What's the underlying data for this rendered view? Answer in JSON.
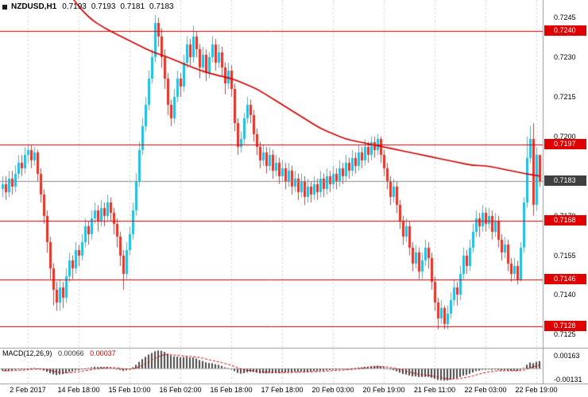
{
  "title": {
    "symbol": "NZDUSD,H1",
    "open": "0.7193",
    "high": "0.7193",
    "low": "0.7181",
    "close": "0.7183"
  },
  "macd_title": {
    "label": "MACD(12,26,9)",
    "value_main": "0.00066",
    "value_signal": "0.00037"
  },
  "colors": {
    "bull": "#1fc0e0",
    "bear": "#e5342a",
    "sr_line": "#e00000",
    "ma_line": "#d00000",
    "grid": "#d6d6d6",
    "divider": "#9a9a9a",
    "price_line": "#8a8a8a",
    "tag_sr_bg": "#e00000",
    "tag_current_bg": "#3f3f3f",
    "tag_text": "#ffffff",
    "macd_hist": "#4a4a4a",
    "macd_signal": "#d00000",
    "macd_zero": "#b4b4b4",
    "text": "#000000",
    "background": "#ffffff"
  },
  "chart_data": {
    "type": "candlestick",
    "symbol": "NZDUSD",
    "timeframe": "H1",
    "pip": 0.0001,
    "ylim": [
      0.712,
      0.72517
    ],
    "current_price": 0.7183,
    "current_bar": {
      "open": 0.7193,
      "high": 0.7193,
      "low": 0.7181,
      "close": 0.7183
    },
    "sr_levels": [
      0.724,
      0.7197,
      0.7168,
      0.7146,
      0.7128
    ],
    "price_axis": {
      "labels_plain": [
        "0.7245",
        "0.7230",
        "0.7215",
        "0.7200",
        "0.7170",
        "0.7155",
        "0.7140",
        "0.7125"
      ],
      "level_tags": [
        {
          "text": "0.7240",
          "type": "sr"
        },
        {
          "text": "0.7197",
          "type": "sr"
        },
        {
          "text": "0.7168",
          "type": "sr"
        },
        {
          "text": "0.7146",
          "type": "sr"
        },
        {
          "text": "0.7128",
          "type": "sr"
        },
        {
          "text": "0.7183",
          "type": "current"
        }
      ]
    },
    "x_axis": {
      "labels": [
        "2 Feb 2017",
        "14 Feb 18:00",
        "15 Feb 10:00",
        "16 Feb 02:00",
        "16 Feb 18:00",
        "17 Feb 18:00",
        "20 Feb 03:00",
        "20 Feb 19:00",
        "21 Feb 11:00",
        "22 Feb 03:00",
        "22 Feb 19:00"
      ],
      "tick_indices": [
        8,
        24,
        40,
        56,
        72,
        88,
        104,
        120,
        136,
        152,
        168
      ]
    },
    "candles_pips": [
      [
        7180,
        7185,
        7177,
        7182
      ],
      [
        7182,
        7185,
        7176,
        7179
      ],
      [
        7179,
        7187,
        7177,
        7184
      ],
      [
        7184,
        7187,
        7178,
        7181
      ],
      [
        7181,
        7189,
        7179,
        7186
      ],
      [
        7186,
        7193,
        7184,
        7190
      ],
      [
        7190,
        7193,
        7185,
        7188
      ],
      [
        7188,
        7196,
        7186,
        7193
      ],
      [
        7193,
        7197,
        7190,
        7195
      ],
      [
        7195,
        7197,
        7188,
        7191
      ],
      [
        7191,
        7196,
        7189,
        7194
      ],
      [
        7194,
        7195,
        7183,
        7186
      ],
      [
        7186,
        7188,
        7175,
        7178
      ],
      [
        7178,
        7180,
        7167,
        7170
      ],
      [
        7170,
        7172,
        7156,
        7160
      ],
      [
        7160,
        7162,
        7146,
        7150
      ],
      [
        7150,
        7152,
        7136,
        7142
      ],
      [
        7142,
        7145,
        7134,
        7137
      ],
      [
        7137,
        7146,
        7134,
        7143
      ],
      [
        7143,
        7145,
        7135,
        7139
      ],
      [
        7139,
        7150,
        7137,
        7147
      ],
      [
        7147,
        7156,
        7145,
        7153
      ],
      [
        7153,
        7155,
        7146,
        7150
      ],
      [
        7150,
        7160,
        7148,
        7157
      ],
      [
        7157,
        7159,
        7151,
        7155
      ],
      [
        7155,
        7163,
        7153,
        7160
      ],
      [
        7160,
        7169,
        7158,
        7166
      ],
      [
        7166,
        7168,
        7159,
        7163
      ],
      [
        7163,
        7172,
        7161,
        7169
      ],
      [
        7169,
        7175,
        7167,
        7172
      ],
      [
        7172,
        7174,
        7164,
        7168
      ],
      [
        7168,
        7176,
        7166,
        7173
      ],
      [
        7173,
        7175,
        7166,
        7170
      ],
      [
        7170,
        7178,
        7168,
        7175
      ],
      [
        7175,
        7177,
        7168,
        7171
      ],
      [
        7171,
        7173,
        7163,
        7167
      ],
      [
        7167,
        7169,
        7158,
        7162
      ],
      [
        7162,
        7164,
        7151,
        7155
      ],
      [
        7155,
        7157,
        7142,
        7148
      ],
      [
        7148,
        7160,
        7146,
        7157
      ],
      [
        7157,
        7166,
        7155,
        7163
      ],
      [
        7163,
        7175,
        7161,
        7172
      ],
      [
        7172,
        7186,
        7170,
        7183
      ],
      [
        7183,
        7198,
        7181,
        7195
      ],
      [
        7195,
        7207,
        7193,
        7204
      ],
      [
        7204,
        7215,
        7202,
        7212
      ],
      [
        7212,
        7225,
        7210,
        7222
      ],
      [
        7222,
        7233,
        7220,
        7230
      ],
      [
        7230,
        7246,
        7228,
        7243
      ],
      [
        7243,
        7245,
        7234,
        7238
      ],
      [
        7238,
        7241,
        7226,
        7230
      ],
      [
        7230,
        7233,
        7218,
        7222
      ],
      [
        7222,
        7224,
        7208,
        7212
      ],
      [
        7212,
        7214,
        7204,
        7207
      ],
      [
        7207,
        7218,
        7205,
        7215
      ],
      [
        7215,
        7225,
        7213,
        7222
      ],
      [
        7222,
        7224,
        7215,
        7219
      ],
      [
        7219,
        7231,
        7217,
        7228
      ],
      [
        7228,
        7238,
        7226,
        7235
      ],
      [
        7235,
        7237,
        7227,
        7230
      ],
      [
        7230,
        7242,
        7228,
        7238
      ],
      [
        7238,
        7240,
        7230,
        7233
      ],
      [
        7233,
        7235,
        7222,
        7226
      ],
      [
        7226,
        7234,
        7224,
        7231
      ],
      [
        7231,
        7233,
        7221,
        7224
      ],
      [
        7224,
        7232,
        7222,
        7230
      ],
      [
        7230,
        7238,
        7228,
        7235
      ],
      [
        7235,
        7237,
        7225,
        7228
      ],
      [
        7228,
        7235,
        7226,
        7232
      ],
      [
        7232,
        7234,
        7223,
        7226
      ],
      [
        7226,
        7228,
        7216,
        7220
      ],
      [
        7220,
        7228,
        7218,
        7225
      ],
      [
        7225,
        7227,
        7215,
        7218
      ],
      [
        7218,
        7220,
        7202,
        7205
      ],
      [
        7205,
        7207,
        7193,
        7196
      ],
      [
        7196,
        7202,
        7194,
        7199
      ],
      [
        7199,
        7209,
        7197,
        7207
      ],
      [
        7207,
        7215,
        7205,
        7212
      ],
      [
        7212,
        7214,
        7205,
        7208
      ],
      [
        7208,
        7210,
        7198,
        7201
      ],
      [
        7201,
        7203,
        7193,
        7196
      ],
      [
        7196,
        7198,
        7188,
        7191
      ],
      [
        7191,
        7197,
        7189,
        7194
      ],
      [
        7194,
        7196,
        7186,
        7189
      ],
      [
        7189,
        7196,
        7187,
        7193
      ],
      [
        7193,
        7195,
        7184,
        7187
      ],
      [
        7187,
        7193,
        7185,
        7190
      ],
      [
        7190,
        7192,
        7182,
        7185
      ],
      [
        7185,
        7191,
        7183,
        7188
      ],
      [
        7188,
        7190,
        7180,
        7183
      ],
      [
        7183,
        7190,
        7181,
        7187
      ],
      [
        7187,
        7189,
        7178,
        7181
      ],
      [
        7181,
        7187,
        7179,
        7184
      ],
      [
        7184,
        7186,
        7176,
        7179
      ],
      [
        7179,
        7186,
        7177,
        7183
      ],
      [
        7183,
        7185,
        7174,
        7177
      ],
      [
        7177,
        7184,
        7175,
        7181
      ],
      [
        7181,
        7183,
        7175,
        7178
      ],
      [
        7178,
        7185,
        7176,
        7182
      ],
      [
        7182,
        7184,
        7176,
        7179
      ],
      [
        7179,
        7187,
        7177,
        7184
      ],
      [
        7184,
        7186,
        7177,
        7180
      ],
      [
        7180,
        7188,
        7178,
        7185
      ],
      [
        7185,
        7187,
        7179,
        7182
      ],
      [
        7182,
        7189,
        7180,
        7186
      ],
      [
        7186,
        7188,
        7180,
        7183
      ],
      [
        7183,
        7191,
        7181,
        7188
      ],
      [
        7188,
        7190,
        7182,
        7185
      ],
      [
        7185,
        7193,
        7183,
        7190
      ],
      [
        7190,
        7192,
        7184,
        7187
      ],
      [
        7187,
        7195,
        7185,
        7192
      ],
      [
        7192,
        7194,
        7186,
        7189
      ],
      [
        7189,
        7197,
        7187,
        7194
      ],
      [
        7194,
        7196,
        7188,
        7191
      ],
      [
        7191,
        7199,
        7189,
        7196
      ],
      [
        7196,
        7198,
        7190,
        7193
      ],
      [
        7193,
        7200,
        7191,
        7198
      ],
      [
        7198,
        7200,
        7192,
        7195
      ],
      [
        7195,
        7201,
        7193,
        7199
      ],
      [
        7199,
        7200,
        7190,
        7193
      ],
      [
        7193,
        7195,
        7185,
        7188
      ],
      [
        7188,
        7190,
        7180,
        7183
      ],
      [
        7183,
        7185,
        7174,
        7177
      ],
      [
        7177,
        7184,
        7175,
        7181
      ],
      [
        7181,
        7183,
        7171,
        7174
      ],
      [
        7174,
        7176,
        7165,
        7168
      ],
      [
        7168,
        7170,
        7159,
        7162
      ],
      [
        7162,
        7169,
        7160,
        7166
      ],
      [
        7166,
        7168,
        7155,
        7158
      ],
      [
        7158,
        7160,
        7149,
        7152
      ],
      [
        7152,
        7159,
        7150,
        7156
      ],
      [
        7156,
        7158,
        7146,
        7149
      ],
      [
        7149,
        7156,
        7146,
        7153
      ],
      [
        7153,
        7161,
        7151,
        7158
      ],
      [
        7158,
        7160,
        7150,
        7154
      ],
      [
        7154,
        7156,
        7142,
        7145
      ],
      [
        7145,
        7147,
        7134,
        7137
      ],
      [
        7137,
        7139,
        7127,
        7131
      ],
      [
        7131,
        7138,
        7129,
        7135
      ],
      [
        7135,
        7136,
        7127,
        7129
      ],
      [
        7129,
        7136,
        7127,
        7133
      ],
      [
        7133,
        7141,
        7131,
        7138
      ],
      [
        7138,
        7146,
        7136,
        7143
      ],
      [
        7143,
        7145,
        7136,
        7140
      ],
      [
        7140,
        7151,
        7138,
        7148
      ],
      [
        7148,
        7158,
        7146,
        7155
      ],
      [
        7155,
        7157,
        7148,
        7151
      ],
      [
        7151,
        7161,
        7149,
        7158
      ],
      [
        7158,
        7167,
        7156,
        7164
      ],
      [
        7164,
        7172,
        7162,
        7169
      ],
      [
        7169,
        7171,
        7162,
        7166
      ],
      [
        7166,
        7174,
        7164,
        7171
      ],
      [
        7171,
        7173,
        7164,
        7167
      ],
      [
        7167,
        7173,
        7165,
        7170
      ],
      [
        7170,
        7172,
        7161,
        7164
      ],
      [
        7164,
        7171,
        7162,
        7168
      ],
      [
        7168,
        7170,
        7158,
        7161
      ],
      [
        7161,
        7163,
        7153,
        7156
      ],
      [
        7156,
        7162,
        7154,
        7159
      ],
      [
        7159,
        7161,
        7149,
        7152
      ],
      [
        7152,
        7154,
        7145,
        7148
      ],
      [
        7148,
        7154,
        7146,
        7151
      ],
      [
        7151,
        7153,
        7144,
        7146
      ],
      [
        7146,
        7160,
        7145,
        7158
      ],
      [
        7158,
        7177,
        7156,
        7175
      ],
      [
        7175,
        7200,
        7173,
        7192
      ],
      [
        7192,
        7204,
        7190,
        7199
      ],
      [
        7199,
        7205,
        7170,
        7174
      ],
      [
        7174,
        7196,
        7172,
        7193
      ],
      [
        7193,
        7193,
        7181,
        7183
      ]
    ],
    "ma_points": [
      [
        20,
        0.7256
      ],
      [
        22,
        0.7252
      ],
      [
        27,
        0.7245
      ],
      [
        32,
        0.7241
      ],
      [
        37,
        0.7238
      ],
      [
        42,
        0.7235
      ],
      [
        47,
        0.7232
      ],
      [
        52,
        0.723
      ],
      [
        56,
        0.7228
      ],
      [
        62,
        0.7225
      ],
      [
        68,
        0.7223
      ],
      [
        72,
        0.7222
      ],
      [
        76,
        0.722
      ],
      [
        80,
        0.7218
      ],
      [
        84,
        0.7215
      ],
      [
        88,
        0.7212
      ],
      [
        92,
        0.7209
      ],
      [
        96,
        0.7206
      ],
      [
        100,
        0.7203
      ],
      [
        104,
        0.7201
      ],
      [
        108,
        0.7199
      ],
      [
        112,
        0.7198
      ],
      [
        116,
        0.7197
      ],
      [
        120,
        0.7196
      ],
      [
        124,
        0.7195
      ],
      [
        128,
        0.7194
      ],
      [
        132,
        0.7193
      ],
      [
        136,
        0.7192
      ],
      [
        140,
        0.7191
      ],
      [
        144,
        0.719
      ],
      [
        148,
        0.7189
      ],
      [
        152,
        0.7189
      ],
      [
        156,
        0.7188
      ],
      [
        160,
        0.7187
      ],
      [
        164,
        0.7186
      ],
      [
        169,
        0.7185
      ]
    ],
    "macd": {
      "label": "MACD(12,26,9)",
      "value_main": "0.00066",
      "value_signal": "0.00037",
      "axis_max_label": "0.00163",
      "axis_min_label": "-0.00131",
      "y_max": 0.00163,
      "y_min": -0.00131,
      "hist_1e5": [
        -18,
        -22,
        -20,
        -15,
        -10,
        -6,
        -8,
        -4,
        0,
        4,
        6,
        2,
        -6,
        -16,
        -28,
        -40,
        -50,
        -56,
        -52,
        -48,
        -40,
        -30,
        -24,
        -16,
        -12,
        -6,
        2,
        6,
        12,
        16,
        14,
        16,
        14,
        16,
        12,
        6,
        -2,
        -12,
        -20,
        -14,
        -4,
        12,
        34,
        60,
        84,
        104,
        124,
        138,
        154,
        160,
        158,
        148,
        132,
        116,
        108,
        106,
        100,
        102,
        104,
        98,
        98,
        90,
        76,
        68,
        56,
        50,
        48,
        40,
        34,
        24,
        12,
        6,
        -4,
        -22,
        -38,
        -44,
        -40,
        -32,
        -28,
        -30,
        -36,
        -42,
        -40,
        -42,
        -38,
        -40,
        -36,
        -38,
        -34,
        -34,
        -30,
        -32,
        -28,
        -30,
        -26,
        -28,
        -26,
        -26,
        -22,
        -22,
        -18,
        -18,
        -14,
        -12,
        -10,
        -10,
        -6,
        -6,
        -2,
        0,
        4,
        6,
        10,
        12,
        16,
        18,
        22,
        24,
        26,
        22,
        14,
        4,
        -8,
        -14,
        -24,
        -36,
        -48,
        -52,
        -60,
        -68,
        -68,
        -74,
        -74,
        -72,
        -72,
        -80,
        -90,
        -100,
        -102,
        -106,
        -104,
        -98,
        -88,
        -84,
        -74,
        -62,
        -56,
        -46,
        -34,
        -22,
        -18,
        -10,
        -10,
        -6,
        -10,
        -8,
        -12,
        -16,
        -14,
        -18,
        -20,
        -18,
        -20,
        -10,
        8,
        34,
        54,
        48,
        60,
        66
      ]
    }
  }
}
